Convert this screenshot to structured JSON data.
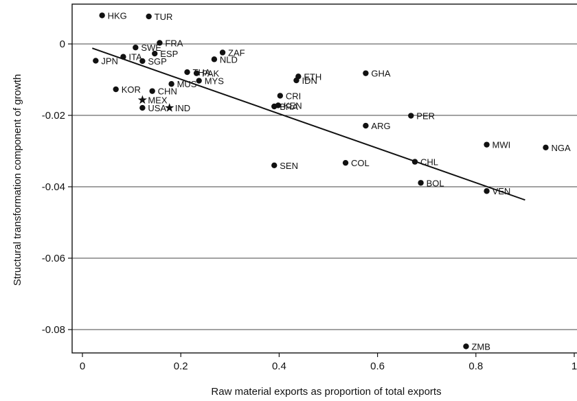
{
  "chart_data": {
    "type": "scatter",
    "title": "",
    "xlabel": "Raw material exports as proportion of total exports",
    "ylabel": "Structural transformation component of growth",
    "xlim": [
      -0.03,
      1.0
    ],
    "ylim": [
      -0.09,
      0.01
    ],
    "x_ticks": [
      0,
      0.2,
      0.4,
      0.6,
      0.8,
      1
    ],
    "x_tick_labels": [
      "0",
      "0.2",
      "0.4",
      "0.6",
      "0.8",
      "1"
    ],
    "y_ticks": [
      0,
      -0.02,
      -0.04,
      -0.06,
      -0.08
    ],
    "y_tick_labels": [
      "0",
      "-0.02",
      "-0.04",
      "-0.06",
      "-0.08"
    ],
    "grid": "horizontal",
    "fit_line": {
      "x": [
        0.02,
        0.9
      ],
      "y": [
        -0.0012,
        -0.0437
      ]
    },
    "points": [
      {
        "label": "HKG",
        "x": 0.04,
        "y": 0.008
      },
      {
        "label": "TUR",
        "x": 0.135,
        "y": 0.0077
      },
      {
        "label": "FRA",
        "x": 0.157,
        "y": 0.0003
      },
      {
        "label": "SWE",
        "x": 0.108,
        "y": -0.001
      },
      {
        "label": "ESP",
        "x": 0.147,
        "y": -0.0027
      },
      {
        "label": "ITA",
        "x": 0.083,
        "y": -0.0036
      },
      {
        "label": "SGP",
        "x": 0.122,
        "y": -0.0048
      },
      {
        "label": "JPN",
        "x": 0.027,
        "y": -0.0047
      },
      {
        "label": "ZAF",
        "x": 0.285,
        "y": -0.0024
      },
      {
        "label": "NLD",
        "x": 0.268,
        "y": -0.0043
      },
      {
        "label": "THA",
        "x": 0.213,
        "y": -0.0079
      },
      {
        "label": "PAK",
        "x": 0.232,
        "y": -0.0082
      },
      {
        "label": "MUS",
        "x": 0.181,
        "y": -0.0112
      },
      {
        "label": "MYS",
        "x": 0.237,
        "y": -0.0103
      },
      {
        "label": "KOR",
        "x": 0.068,
        "y": -0.0127
      },
      {
        "label": "CHN",
        "x": 0.142,
        "y": -0.0132
      },
      {
        "label": "MEX",
        "x": 0.122,
        "y": -0.0157
      },
      {
        "label": "USA",
        "x": 0.122,
        "y": -0.0179
      },
      {
        "label": "IND",
        "x": 0.177,
        "y": -0.0179
      },
      {
        "label": "ETH",
        "x": 0.439,
        "y": -0.0091
      },
      {
        "label": "IDN",
        "x": 0.435,
        "y": -0.0102
      },
      {
        "label": "GHA",
        "x": 0.576,
        "y": -0.0082
      },
      {
        "label": "CRI",
        "x": 0.402,
        "y": -0.0145
      },
      {
        "label": "KEN",
        "x": 0.398,
        "y": -0.0172
      },
      {
        "label": "BRA",
        "x": 0.39,
        "y": -0.0175
      },
      {
        "label": "PER",
        "x": 0.668,
        "y": -0.0201
      },
      {
        "label": "ARG",
        "x": 0.576,
        "y": -0.0229
      },
      {
        "label": "MWI",
        "x": 0.822,
        "y": -0.0282
      },
      {
        "label": "NGA",
        "x": 0.942,
        "y": -0.029
      },
      {
        "label": "SEN",
        "x": 0.39,
        "y": -0.034
      },
      {
        "label": "COL",
        "x": 0.535,
        "y": -0.0333
      },
      {
        "label": "CHL",
        "x": 0.676,
        "y": -0.033
      },
      {
        "label": "BOL",
        "x": 0.688,
        "y": -0.0389
      },
      {
        "label": "VEN",
        "x": 0.822,
        "y": -0.0412
      },
      {
        "label": "ZMB",
        "x": 0.78,
        "y": -0.0847
      }
    ],
    "star_labels": [
      "MEX",
      "IND"
    ]
  }
}
